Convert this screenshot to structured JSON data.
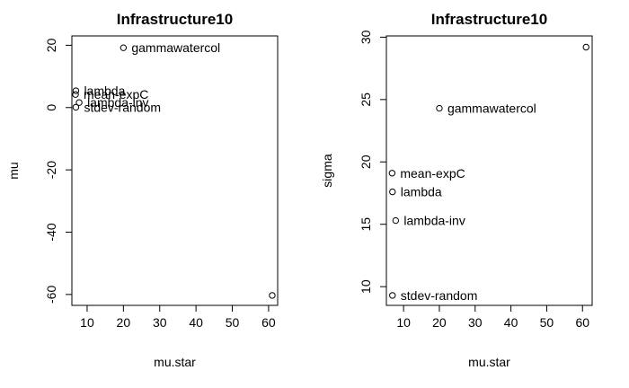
{
  "chart_data": [
    {
      "type": "scatter",
      "title": "Infrastructure10",
      "xlabel": "mu.star",
      "ylabel": "mu",
      "xlim": [
        5.8,
        62.5
      ],
      "ylim": [
        -63.5,
        23.0
      ],
      "xticks": [
        10,
        20,
        30,
        40,
        50,
        60
      ],
      "yticks": [
        -60,
        -40,
        -20,
        0,
        20
      ],
      "grid": false,
      "points": [
        {
          "x": 20.0,
          "y": 19.2,
          "label": "gammawatercol"
        },
        {
          "x": 6.9,
          "y": 5.4,
          "label": "lambda"
        },
        {
          "x": 6.8,
          "y": 4.2,
          "label": "mean-expC"
        },
        {
          "x": 7.8,
          "y": 1.6,
          "label": "lambda-inv"
        },
        {
          "x": 6.9,
          "y": 0.1,
          "label": "stdev-random"
        },
        {
          "x": 61.0,
          "y": -60.3,
          "label": ""
        }
      ]
    },
    {
      "type": "scatter",
      "title": "Infrastructure10",
      "xlabel": "mu.star",
      "ylabel": "sigma",
      "xlim": [
        5.2,
        62.7
      ],
      "ylim": [
        8.5,
        30.1
      ],
      "xticks": [
        10,
        20,
        30,
        40,
        50,
        60
      ],
      "yticks": [
        10,
        15,
        20,
        25,
        30
      ],
      "grid": false,
      "points": [
        {
          "x": 61.0,
          "y": 29.2,
          "label": ""
        },
        {
          "x": 20.0,
          "y": 24.3,
          "label": "gammawatercol"
        },
        {
          "x": 6.8,
          "y": 19.1,
          "label": "mean-expC"
        },
        {
          "x": 6.9,
          "y": 17.6,
          "label": "lambda"
        },
        {
          "x": 7.8,
          "y": 15.3,
          "label": "lambda-inv"
        },
        {
          "x": 6.9,
          "y": 9.3,
          "label": "stdev-random"
        }
      ]
    }
  ]
}
